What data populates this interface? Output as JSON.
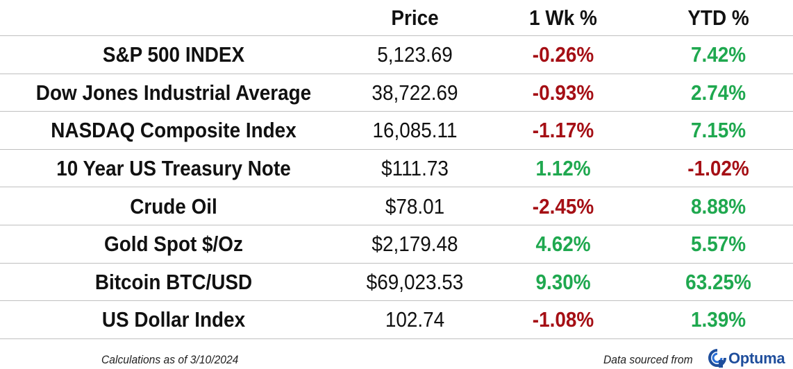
{
  "table": {
    "headers": {
      "name": "",
      "price": "Price",
      "week": "1 Wk %",
      "ytd": "YTD %"
    },
    "rows": [
      {
        "name": "S&P 500 INDEX",
        "price": "5,123.69",
        "week": "-0.26%",
        "week_sign": "neg",
        "ytd": "7.42%",
        "ytd_sign": "pos"
      },
      {
        "name": "Dow Jones Industrial Average",
        "price": "38,722.69",
        "week": "-0.93%",
        "week_sign": "neg",
        "ytd": "2.74%",
        "ytd_sign": "pos"
      },
      {
        "name": "NASDAQ Composite Index",
        "price": "16,085.11",
        "week": "-1.17%",
        "week_sign": "neg",
        "ytd": "7.15%",
        "ytd_sign": "pos"
      },
      {
        "name": "10 Year US Treasury Note",
        "price": "$111.73",
        "week": "1.12%",
        "week_sign": "pos",
        "ytd": "-1.02%",
        "ytd_sign": "neg"
      },
      {
        "name": "Crude Oil",
        "price": "$78.01",
        "week": "-2.45%",
        "week_sign": "neg",
        "ytd": "8.88%",
        "ytd_sign": "pos"
      },
      {
        "name": "Gold Spot $/Oz",
        "price": "$2,179.48",
        "week": "4.62%",
        "week_sign": "pos",
        "ytd": "5.57%",
        "ytd_sign": "pos"
      },
      {
        "name": "Bitcoin BTC/USD",
        "price": "$69,023.53",
        "week": "9.30%",
        "week_sign": "pos",
        "ytd": "63.25%",
        "ytd_sign": "pos"
      },
      {
        "name": "US Dollar Index",
        "price": "102.74",
        "week": "-1.08%",
        "week_sign": "neg",
        "ytd": "1.39%",
        "ytd_sign": "pos"
      }
    ]
  },
  "footer": {
    "calc_note": "Calculations as of 3/10/2024",
    "source_note": "Data sourced from",
    "logo_text": "Optuma"
  },
  "colors": {
    "negative": "#a50f15",
    "positive": "#1fa84f",
    "logo": "#1f4e9c"
  },
  "icons": {
    "logo_mark": "optuma-logo-icon"
  }
}
